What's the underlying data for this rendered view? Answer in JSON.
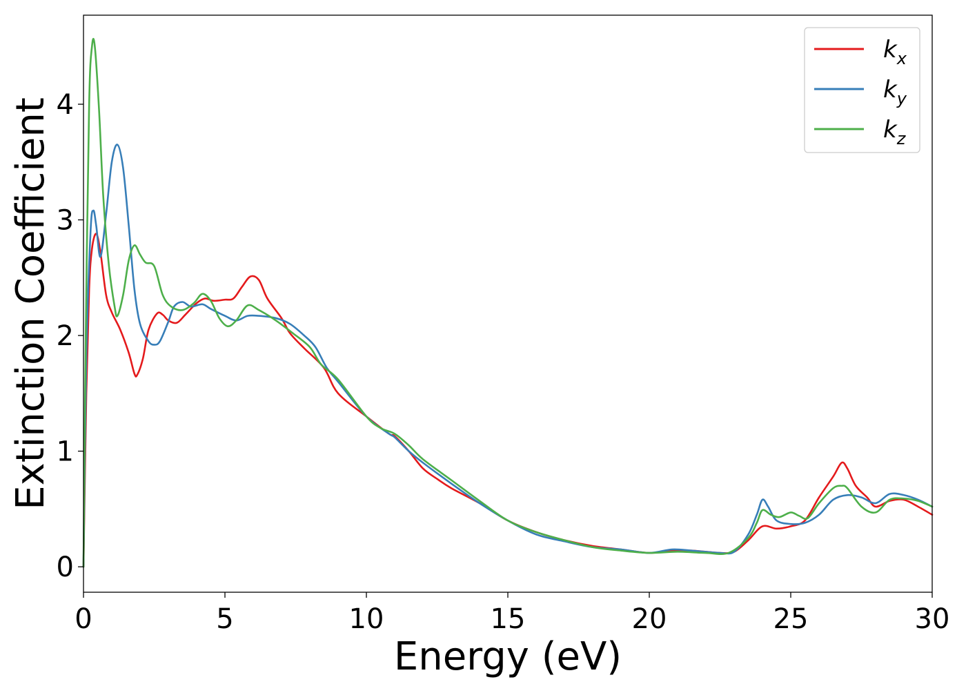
{
  "chart_data": {
    "type": "line",
    "title": "",
    "xlabel": "Energy (eV)",
    "ylabel": "Extinction Coefficient",
    "xlim": [
      0,
      30
    ],
    "ylim": [
      -0.22,
      4.77
    ],
    "xticks": [
      0,
      5,
      10,
      15,
      20,
      25,
      30
    ],
    "yticks": [
      0,
      1,
      2,
      3,
      4
    ],
    "xtick_labels": [
      "0",
      "5",
      "10",
      "15",
      "20",
      "25",
      "30"
    ],
    "ytick_labels": [
      "0",
      "1",
      "2",
      "3",
      "4"
    ],
    "grid": false,
    "legend_position": "top-right",
    "series": [
      {
        "name": "k",
        "subscript": "x",
        "color": "#e41a1c",
        "points": [
          [
            0,
            0
          ],
          [
            0.1,
            1.5
          ],
          [
            0.2,
            2.4
          ],
          [
            0.3,
            2.75
          ],
          [
            0.45,
            2.88
          ],
          [
            0.6,
            2.72
          ],
          [
            0.8,
            2.35
          ],
          [
            1.0,
            2.2
          ],
          [
            1.3,
            2.05
          ],
          [
            1.6,
            1.85
          ],
          [
            1.8,
            1.67
          ],
          [
            1.9,
            1.66
          ],
          [
            2.1,
            1.8
          ],
          [
            2.3,
            2.05
          ],
          [
            2.6,
            2.19
          ],
          [
            2.8,
            2.18
          ],
          [
            3.0,
            2.13
          ],
          [
            3.3,
            2.11
          ],
          [
            3.6,
            2.18
          ],
          [
            4.0,
            2.28
          ],
          [
            4.3,
            2.32
          ],
          [
            4.6,
            2.3
          ],
          [
            5.0,
            2.31
          ],
          [
            5.3,
            2.32
          ],
          [
            5.6,
            2.42
          ],
          [
            5.9,
            2.51
          ],
          [
            6.2,
            2.48
          ],
          [
            6.5,
            2.32
          ],
          [
            7.0,
            2.15
          ],
          [
            7.3,
            2.02
          ],
          [
            7.8,
            1.89
          ],
          [
            8.5,
            1.72
          ],
          [
            9.0,
            1.5
          ],
          [
            10.0,
            1.3
          ],
          [
            10.8,
            1.15
          ],
          [
            11.0,
            1.13
          ],
          [
            11.5,
            1.0
          ],
          [
            12.0,
            0.85
          ],
          [
            12.5,
            0.76
          ],
          [
            13.0,
            0.68
          ],
          [
            14.0,
            0.55
          ],
          [
            15.0,
            0.4
          ],
          [
            16.0,
            0.3
          ],
          [
            17.0,
            0.23
          ],
          [
            18.0,
            0.18
          ],
          [
            19.0,
            0.15
          ],
          [
            20.0,
            0.12
          ],
          [
            20.8,
            0.14
          ],
          [
            21.5,
            0.14
          ],
          [
            22.5,
            0.12
          ],
          [
            23.0,
            0.13
          ],
          [
            23.5,
            0.23
          ],
          [
            24.0,
            0.35
          ],
          [
            24.5,
            0.33
          ],
          [
            25.0,
            0.35
          ],
          [
            25.5,
            0.4
          ],
          [
            26.0,
            0.6
          ],
          [
            26.5,
            0.78
          ],
          [
            26.8,
            0.9
          ],
          [
            27.0,
            0.85
          ],
          [
            27.3,
            0.7
          ],
          [
            27.7,
            0.6
          ],
          [
            28.0,
            0.52
          ],
          [
            28.5,
            0.57
          ],
          [
            29.0,
            0.58
          ],
          [
            29.5,
            0.52
          ],
          [
            30.0,
            0.45
          ]
        ]
      },
      {
        "name": "k",
        "subscript": "y",
        "color": "#377eb8",
        "points": [
          [
            0,
            0
          ],
          [
            0.1,
            1.8
          ],
          [
            0.25,
            2.9
          ],
          [
            0.35,
            3.08
          ],
          [
            0.45,
            2.95
          ],
          [
            0.6,
            2.68
          ],
          [
            0.8,
            3.05
          ],
          [
            1.0,
            3.5
          ],
          [
            1.2,
            3.65
          ],
          [
            1.4,
            3.45
          ],
          [
            1.6,
            2.95
          ],
          [
            1.8,
            2.4
          ],
          [
            2.0,
            2.1
          ],
          [
            2.3,
            1.95
          ],
          [
            2.5,
            1.92
          ],
          [
            2.7,
            1.95
          ],
          [
            3.0,
            2.12
          ],
          [
            3.2,
            2.25
          ],
          [
            3.5,
            2.29
          ],
          [
            3.8,
            2.25
          ],
          [
            4.2,
            2.27
          ],
          [
            4.5,
            2.23
          ],
          [
            5.0,
            2.17
          ],
          [
            5.4,
            2.13
          ],
          [
            5.8,
            2.17
          ],
          [
            6.2,
            2.17
          ],
          [
            6.8,
            2.15
          ],
          [
            7.3,
            2.1
          ],
          [
            7.8,
            2.0
          ],
          [
            8.2,
            1.9
          ],
          [
            8.6,
            1.72
          ],
          [
            9.0,
            1.6
          ],
          [
            10.0,
            1.3
          ],
          [
            10.8,
            1.15
          ],
          [
            11.0,
            1.12
          ],
          [
            11.5,
            1.0
          ],
          [
            12.0,
            0.9
          ],
          [
            13.0,
            0.72
          ],
          [
            14.0,
            0.55
          ],
          [
            15.0,
            0.4
          ],
          [
            16.0,
            0.28
          ],
          [
            17.0,
            0.22
          ],
          [
            18.0,
            0.17
          ],
          [
            19.0,
            0.15
          ],
          [
            20.0,
            0.12
          ],
          [
            20.8,
            0.15
          ],
          [
            21.5,
            0.14
          ],
          [
            22.5,
            0.12
          ],
          [
            23.0,
            0.13
          ],
          [
            23.5,
            0.28
          ],
          [
            23.8,
            0.45
          ],
          [
            24.0,
            0.58
          ],
          [
            24.2,
            0.52
          ],
          [
            24.5,
            0.4
          ],
          [
            25.0,
            0.37
          ],
          [
            25.5,
            0.38
          ],
          [
            26.0,
            0.45
          ],
          [
            26.5,
            0.58
          ],
          [
            27.0,
            0.62
          ],
          [
            27.5,
            0.6
          ],
          [
            28.0,
            0.55
          ],
          [
            28.5,
            0.63
          ],
          [
            29.0,
            0.62
          ],
          [
            29.5,
            0.58
          ],
          [
            30.0,
            0.52
          ]
        ]
      },
      {
        "name": "k",
        "subscript": "z",
        "color": "#4daf4a",
        "points": [
          [
            0,
            0
          ],
          [
            0.08,
            2.0
          ],
          [
            0.2,
            4.0
          ],
          [
            0.3,
            4.5
          ],
          [
            0.4,
            4.5
          ],
          [
            0.55,
            3.95
          ],
          [
            0.7,
            3.2
          ],
          [
            0.9,
            2.6
          ],
          [
            1.1,
            2.25
          ],
          [
            1.2,
            2.17
          ],
          [
            1.4,
            2.35
          ],
          [
            1.6,
            2.65
          ],
          [
            1.8,
            2.78
          ],
          [
            2.0,
            2.7
          ],
          [
            2.2,
            2.63
          ],
          [
            2.5,
            2.6
          ],
          [
            2.8,
            2.35
          ],
          [
            3.1,
            2.25
          ],
          [
            3.5,
            2.22
          ],
          [
            3.9,
            2.28
          ],
          [
            4.2,
            2.36
          ],
          [
            4.5,
            2.3
          ],
          [
            4.8,
            2.15
          ],
          [
            5.1,
            2.08
          ],
          [
            5.4,
            2.13
          ],
          [
            5.8,
            2.26
          ],
          [
            6.2,
            2.22
          ],
          [
            6.8,
            2.13
          ],
          [
            7.4,
            2.02
          ],
          [
            8.0,
            1.9
          ],
          [
            8.4,
            1.75
          ],
          [
            9.0,
            1.62
          ],
          [
            10.0,
            1.3
          ],
          [
            10.5,
            1.2
          ],
          [
            11.0,
            1.15
          ],
          [
            11.5,
            1.05
          ],
          [
            12.0,
            0.93
          ],
          [
            13.0,
            0.75
          ],
          [
            14.0,
            0.57
          ],
          [
            15.0,
            0.4
          ],
          [
            16.0,
            0.3
          ],
          [
            17.0,
            0.23
          ],
          [
            18.0,
            0.17
          ],
          [
            19.0,
            0.14
          ],
          [
            20.0,
            0.12
          ],
          [
            21.0,
            0.13
          ],
          [
            22.0,
            0.12
          ],
          [
            22.8,
            0.12
          ],
          [
            23.5,
            0.25
          ],
          [
            23.8,
            0.38
          ],
          [
            24.0,
            0.49
          ],
          [
            24.3,
            0.45
          ],
          [
            24.6,
            0.43
          ],
          [
            25.0,
            0.47
          ],
          [
            25.3,
            0.44
          ],
          [
            25.6,
            0.42
          ],
          [
            26.0,
            0.55
          ],
          [
            26.5,
            0.68
          ],
          [
            26.8,
            0.7
          ],
          [
            27.0,
            0.68
          ],
          [
            27.5,
            0.52
          ],
          [
            28.0,
            0.47
          ],
          [
            28.5,
            0.58
          ],
          [
            29.0,
            0.59
          ],
          [
            29.5,
            0.57
          ],
          [
            30.0,
            0.52
          ]
        ]
      }
    ]
  }
}
